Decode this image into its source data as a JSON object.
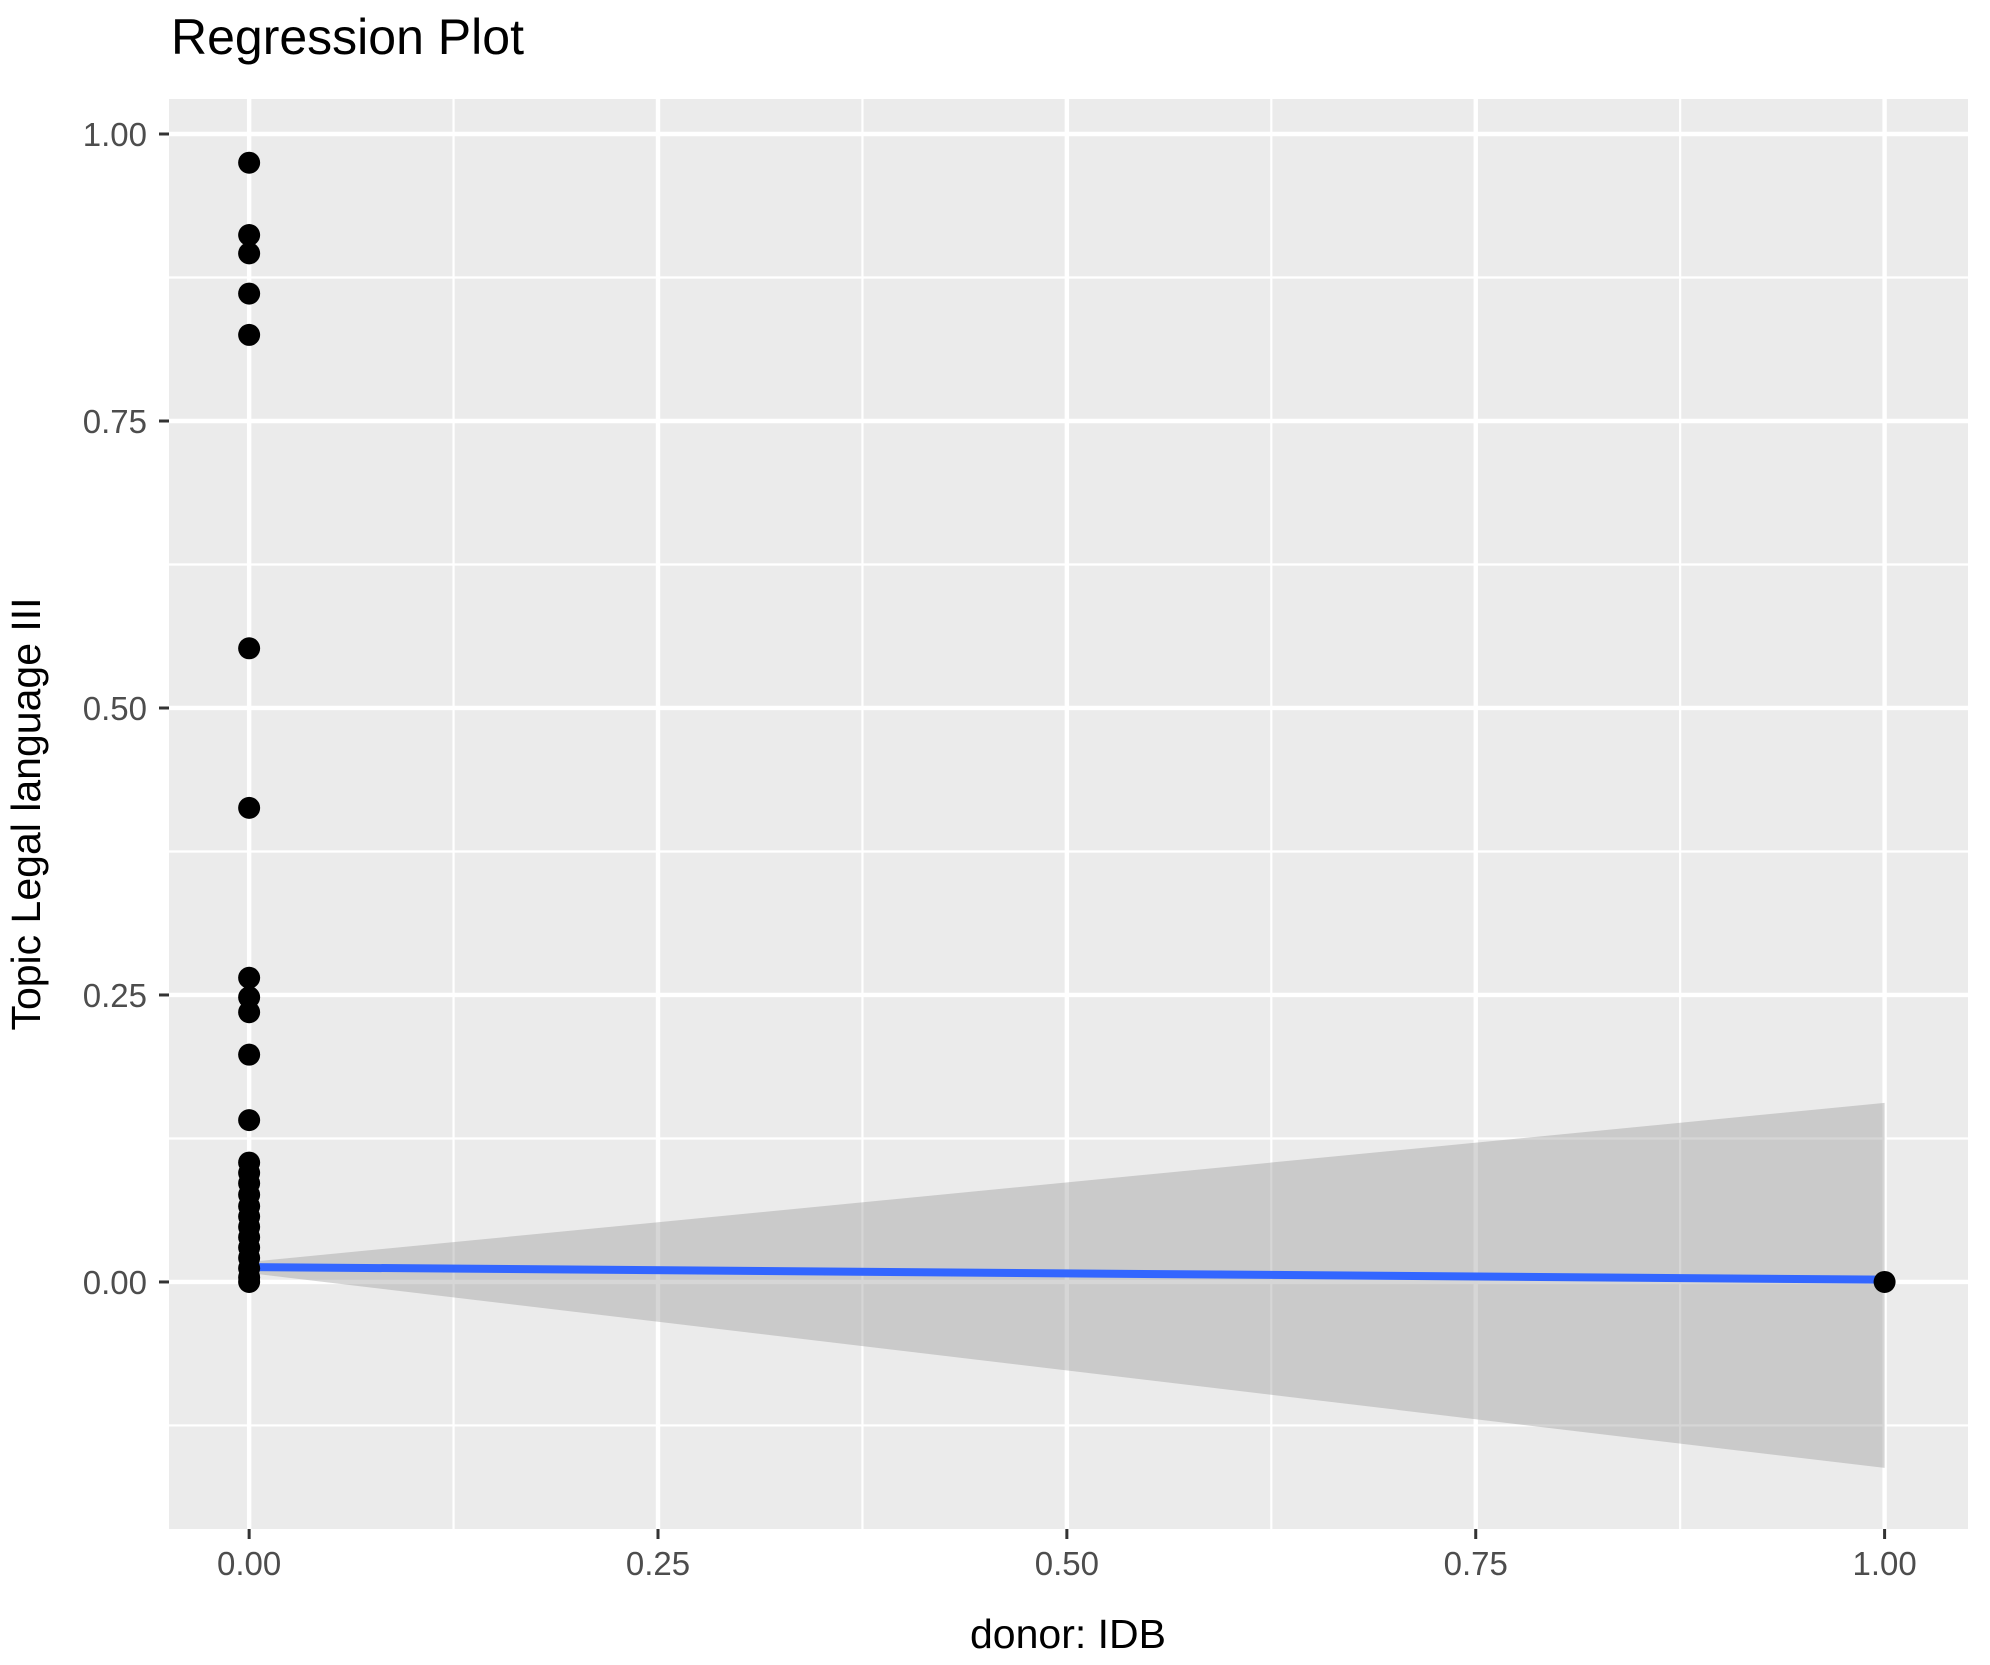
{
  "chart_data": {
    "type": "scatter",
    "title": "Regression Plot",
    "xlabel": "donor: IDB",
    "ylabel": "Topic Legal language III",
    "legend": "none",
    "grid": "on",
    "xlim": [
      -0.049,
      1.051
    ],
    "ylim": [
      -0.2152,
      1.0305
    ],
    "x_ticks": {
      "values": [
        0.0,
        0.25,
        0.5,
        0.75,
        1.0
      ],
      "labels": [
        "0.00",
        "0.25",
        "0.50",
        "0.75",
        "1.00"
      ]
    },
    "y_ticks": {
      "values": [
        0.0,
        0.25,
        0.5,
        0.75,
        1.0
      ],
      "labels": [
        "0.00",
        "0.25",
        "0.50",
        "0.75",
        "1.00"
      ]
    },
    "x_minor": [
      0.125,
      0.375,
      0.625,
      0.875
    ],
    "y_minor": [
      -0.125,
      0.125,
      0.375,
      0.625,
      0.875
    ],
    "points": [
      [
        0,
        0.975
      ],
      [
        0,
        0.912
      ],
      [
        0,
        0.896
      ],
      [
        0,
        0.861
      ],
      [
        0,
        0.825
      ],
      [
        0,
        0.552
      ],
      [
        0,
        0.413
      ],
      [
        0,
        0.265
      ],
      [
        0,
        0.248
      ],
      [
        0,
        0.235
      ],
      [
        0,
        0.198
      ],
      [
        0,
        0.141
      ],
      [
        0,
        0.104
      ],
      [
        0,
        0.095
      ],
      [
        0,
        0.086
      ],
      [
        0,
        0.076
      ],
      [
        0,
        0.066
      ],
      [
        0,
        0.057
      ],
      [
        0,
        0.048
      ],
      [
        0,
        0.039
      ],
      [
        0,
        0.03
      ],
      [
        0,
        0.021
      ],
      [
        0,
        0.012
      ],
      [
        0,
        0.004
      ],
      [
        0,
        0.0
      ],
      [
        1,
        0.0
      ]
    ],
    "regression_line": {
      "x": [
        0,
        1
      ],
      "y": [
        0.013,
        0.002
      ]
    },
    "confidence_band": {
      "x": [
        0,
        1
      ],
      "upper": [
        0.0174,
        0.156
      ],
      "lower": [
        0.0078,
        -0.162
      ]
    },
    "colors": {
      "panel_bg": "#EBEBEB",
      "grid": "#FFFFFF",
      "point": "#000000",
      "line": "#3366FF",
      "band_gray": "#999999",
      "band_alpha": 0.4,
      "tick_text": "#4D4D4D",
      "tick_mark": "#333333",
      "title_text": "#000000"
    }
  }
}
